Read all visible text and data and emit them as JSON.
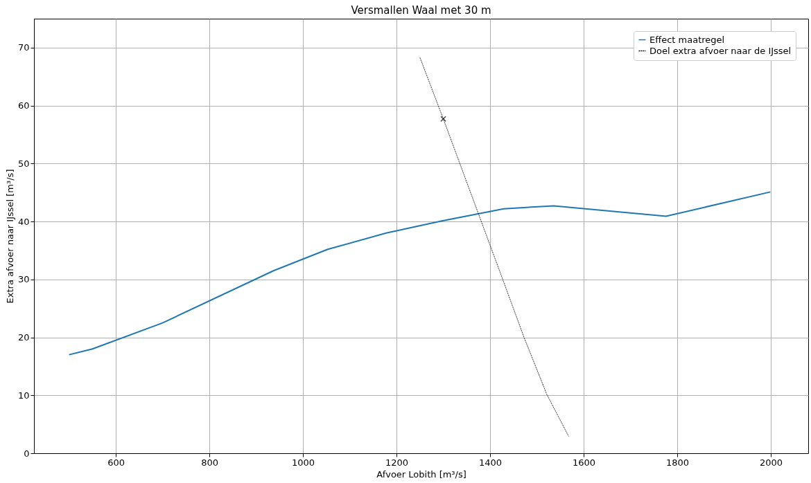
{
  "chart_data": {
    "type": "line",
    "title": "Versmallen Waal met 30 m",
    "xlabel": "Afvoer Lobith [m³/s]",
    "ylabel": "Extra afvoer naar IJssel [m³/s]",
    "xlim": [
      425,
      2080
    ],
    "ylim": [
      0,
      75
    ],
    "xticks": [
      600,
      800,
      1000,
      1200,
      1400,
      1600,
      1800,
      2000
    ],
    "yticks": [
      0,
      10,
      20,
      30,
      40,
      50,
      60,
      70
    ],
    "grid": true,
    "legend": "top right",
    "series": [
      {
        "name": "Effect maatregel",
        "color": "#1f77b4",
        "line_style": "solid",
        "x": [
          500,
          550,
          700,
          937,
          1053,
          1178,
          1297,
          1429,
          1536,
          1776,
          1999
        ],
        "values": [
          17.0,
          18.0,
          22.5,
          31.5,
          35.2,
          38.0,
          40.1,
          42.2,
          42.7,
          40.9,
          45.1
        ]
      },
      {
        "name": "Doel extra afvoer naar de IJssel",
        "color": "#000000",
        "line_style": "dashed",
        "x": [
          1250,
          1300,
          1427,
          1473,
          1521,
          1568
        ],
        "values": [
          68.3,
          57.7,
          30.0,
          19.9,
          10.2,
          2.9
        ]
      },
      {
        "type": "scatter",
        "marker": "cross",
        "color": "#000000",
        "x": [
          1300
        ],
        "values": [
          57.7
        ]
      }
    ]
  }
}
